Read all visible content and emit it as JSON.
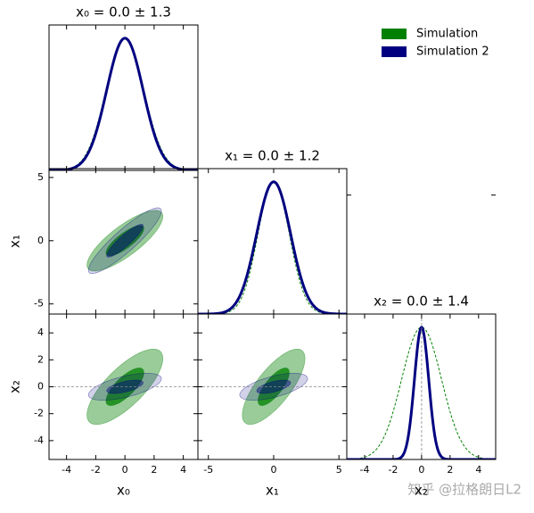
{
  "chart_data": [
    {
      "type": "density",
      "title": "x₀ = 0.0 ± 1.3",
      "xlim": [
        -5.2,
        5.0
      ],
      "ylim": [
        0,
        1.1
      ],
      "series": [
        {
          "name": "Simulation",
          "color": "#008000",
          "mean": 0,
          "sigma": 1.3,
          "linestyle": "dashed"
        },
        {
          "name": "Simulation 2",
          "color": "#000080",
          "mean": 0,
          "sigma": 1.25,
          "linestyle": "solid"
        }
      ]
    },
    {
      "type": "contour",
      "xlim": [
        -5.2,
        5.0
      ],
      "ylim": [
        -5.8,
        5.7
      ],
      "ylabel": "x₁",
      "yticks": [
        -5,
        0,
        5
      ],
      "levels": [
        1,
        2
      ],
      "series": [
        {
          "color": "#008000",
          "mx": 0,
          "my": 0,
          "sx": 1.3,
          "sy": 1.2,
          "rho": 0.8
        },
        {
          "color": "#000080",
          "mx": 0,
          "my": 0,
          "sx": 1.25,
          "sy": 1.3,
          "rho": 0.9
        }
      ]
    },
    {
      "type": "density",
      "title": "x₁ = 0.0 ± 1.2",
      "xlim": [
        -5.8,
        5.6
      ],
      "ylim": [
        0,
        1.1
      ],
      "series": [
        {
          "color": "#008000",
          "mean": 0,
          "sigma": 1.2,
          "linestyle": "dashed"
        },
        {
          "color": "#000080",
          "mean": 0,
          "sigma": 1.3,
          "linestyle": "solid"
        }
      ]
    },
    {
      "type": "contour",
      "xlim": [
        -5.2,
        5.0
      ],
      "ylim": [
        -5.4,
        5.4
      ],
      "xlabel": "x₀",
      "ylabel": "x₂",
      "xticks": [
        -4,
        -2,
        0,
        2,
        4
      ],
      "yticks": [
        -4,
        -2,
        0,
        2,
        4
      ],
      "levels": [
        1,
        2
      ],
      "hline": 0,
      "series": [
        {
          "color": "#008000",
          "mx": 0,
          "my": 0,
          "sx": 1.3,
          "sy": 1.4,
          "rho": 0.75
        },
        {
          "color": "#000080",
          "mx": 0,
          "my": 0,
          "sx": 1.25,
          "sy": 0.5,
          "rho": 0.6
        }
      ]
    },
    {
      "type": "contour",
      "xlim": [
        -5.8,
        5.6
      ],
      "ylim": [
        -5.4,
        5.4
      ],
      "xlabel": "x₁",
      "xticks": [
        -5,
        0,
        5
      ],
      "levels": [
        1,
        2
      ],
      "hline": 0,
      "series": [
        {
          "color": "#008000",
          "mx": 0,
          "my": 0,
          "sx": 1.2,
          "sy": 1.4,
          "rho": 0.75
        },
        {
          "color": "#000080",
          "mx": 0,
          "my": 0,
          "sx": 1.3,
          "sy": 0.5,
          "rho": 0.6
        }
      ]
    },
    {
      "type": "density",
      "title": "x₂ = 0.0 ± 1.4",
      "xlim": [
        -5.25,
        5.2
      ],
      "ylim": [
        0,
        1.1
      ],
      "xlabel": "x₂",
      "xticks": [
        -4,
        -2,
        0,
        2,
        4
      ],
      "vline": 0,
      "series": [
        {
          "color": "#008000",
          "mean": 0,
          "sigma": 1.4,
          "linestyle": "dashed"
        },
        {
          "color": "#000080",
          "mean": 0,
          "sigma": 0.5,
          "linestyle": "solid"
        }
      ]
    }
  ],
  "watermark": "知乎 @拉格朗日L2"
}
